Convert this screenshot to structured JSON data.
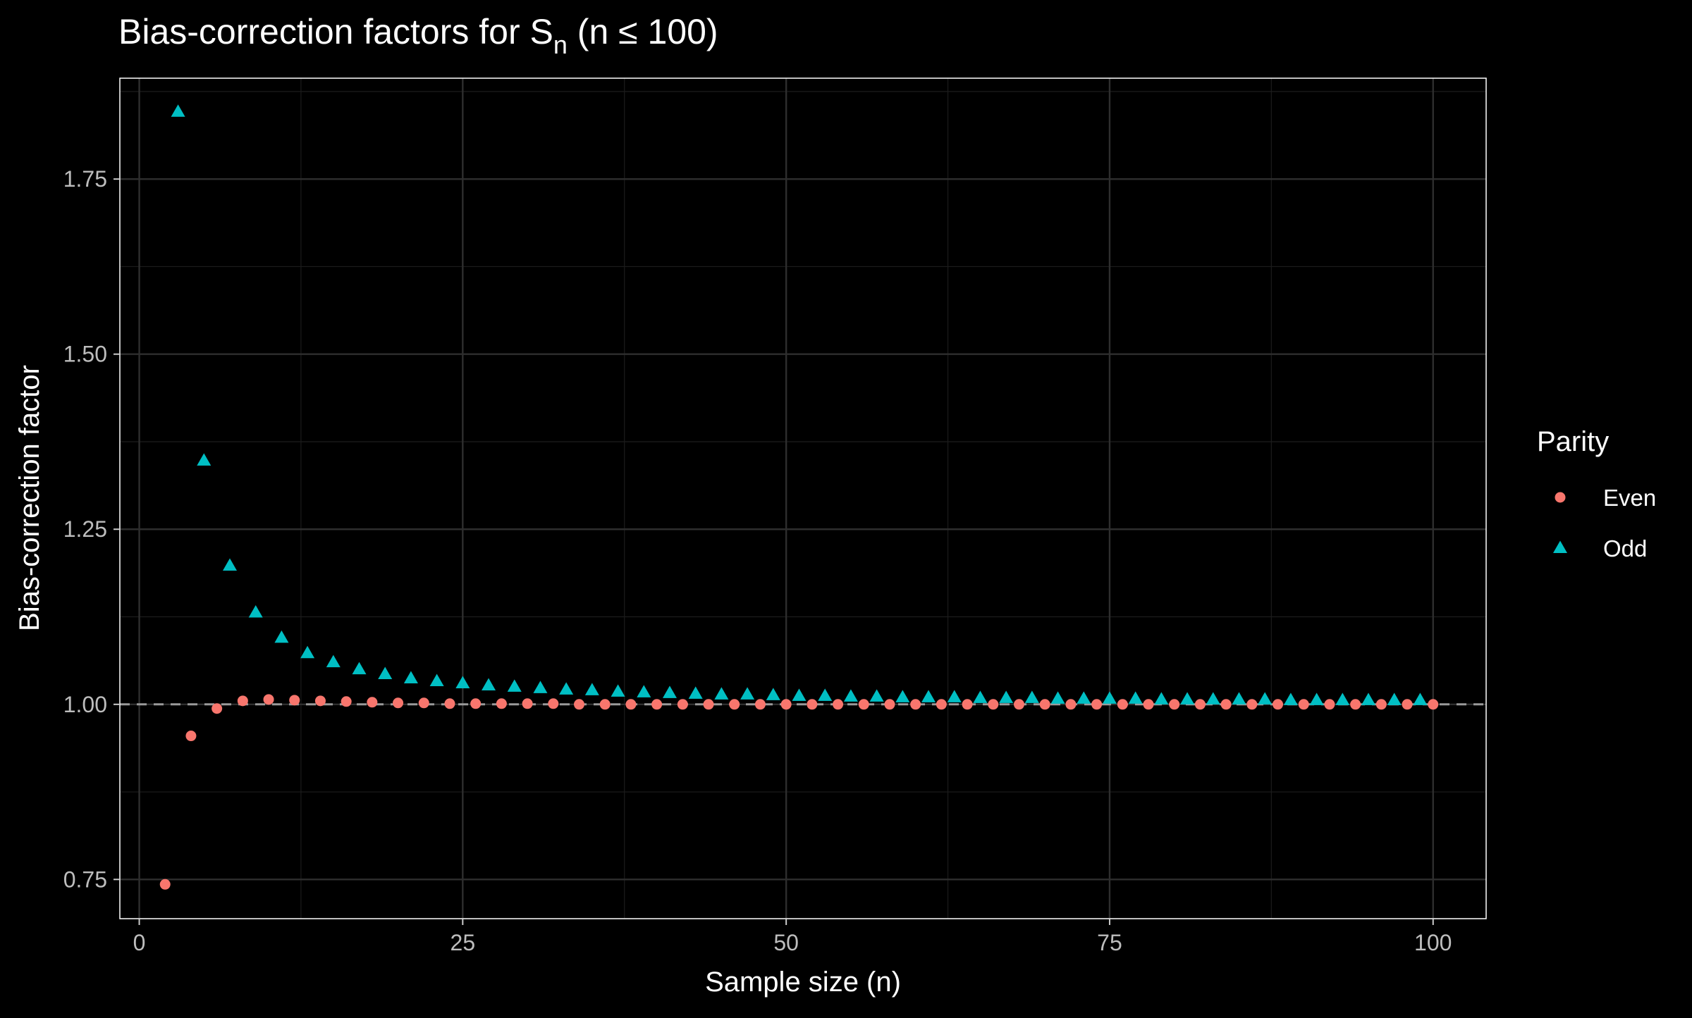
{
  "chart_data": {
    "type": "scatter",
    "title": "Bias-correction factors for S",
    "title_subscript": "n",
    "title_suffix": " (n ≤ 100)",
    "xlabel": "Sample size (n)",
    "ylabel": "Bias-correction factor",
    "xlim": [
      -1.5,
      104.1
    ],
    "ylim": [
      0.694,
      1.894
    ],
    "xticks": [
      0,
      25,
      50,
      75,
      100
    ],
    "xtick_labels": [
      "0",
      "25",
      "50",
      "75",
      "100"
    ],
    "yticks": [
      0.75,
      1.0,
      1.25,
      1.5,
      1.75
    ],
    "ytick_labels": [
      "0.75",
      "1.00",
      "1.25",
      "1.50",
      "1.75"
    ],
    "reference_line": {
      "y": 1.0,
      "style": "dashed"
    },
    "grid": true,
    "legend": {
      "title": "Parity",
      "position": "right"
    },
    "series": [
      {
        "name": "Even",
        "marker": "circle",
        "color": "#F8766D",
        "x": [
          2,
          4,
          6,
          8,
          10,
          12,
          14,
          16,
          18,
          20,
          22,
          24,
          26,
          28,
          30,
          32,
          34,
          36,
          38,
          40,
          42,
          44,
          46,
          48,
          50,
          52,
          54,
          56,
          58,
          60,
          62,
          64,
          66,
          68,
          70,
          72,
          74,
          76,
          78,
          80,
          82,
          84,
          86,
          88,
          90,
          92,
          94,
          96,
          98,
          100
        ],
        "y": [
          0.743,
          0.955,
          0.994,
          1.005,
          1.007,
          1.006,
          1.005,
          1.004,
          1.003,
          1.002,
          1.002,
          1.001,
          1.001,
          1.001,
          1.001,
          1.001,
          1.0,
          1.0,
          1.0,
          1.0,
          1.0,
          1.0,
          1.0,
          1.0,
          1.0,
          1.0,
          1.0,
          1.0,
          1.0,
          1.0,
          1.0,
          1.0,
          1.0,
          1.0,
          1.0,
          1.0,
          1.0,
          1.0,
          1.0,
          1.0,
          1.0,
          1.0,
          1.0,
          1.0,
          1.0,
          1.0,
          1.0,
          1.0,
          1.0,
          1.0
        ]
      },
      {
        "name": "Odd",
        "marker": "triangle",
        "color": "#00BFC4",
        "x": [
          3,
          5,
          7,
          9,
          11,
          13,
          15,
          17,
          19,
          21,
          23,
          25,
          27,
          29,
          31,
          33,
          35,
          37,
          39,
          41,
          43,
          45,
          47,
          49,
          51,
          53,
          55,
          57,
          59,
          61,
          63,
          65,
          67,
          69,
          71,
          73,
          75,
          77,
          79,
          81,
          83,
          85,
          87,
          89,
          91,
          93,
          95,
          97,
          99
        ],
        "y": [
          1.846,
          1.348,
          1.198,
          1.131,
          1.095,
          1.073,
          1.06,
          1.05,
          1.043,
          1.037,
          1.033,
          1.03,
          1.027,
          1.025,
          1.023,
          1.021,
          1.02,
          1.018,
          1.017,
          1.016,
          1.015,
          1.014,
          1.014,
          1.013,
          1.012,
          1.012,
          1.011,
          1.011,
          1.01,
          1.01,
          1.01,
          1.009,
          1.009,
          1.009,
          1.008,
          1.008,
          1.008,
          1.008,
          1.007,
          1.007,
          1.007,
          1.007,
          1.007,
          1.006,
          1.006,
          1.006,
          1.006,
          1.006,
          1.006
        ]
      }
    ]
  }
}
